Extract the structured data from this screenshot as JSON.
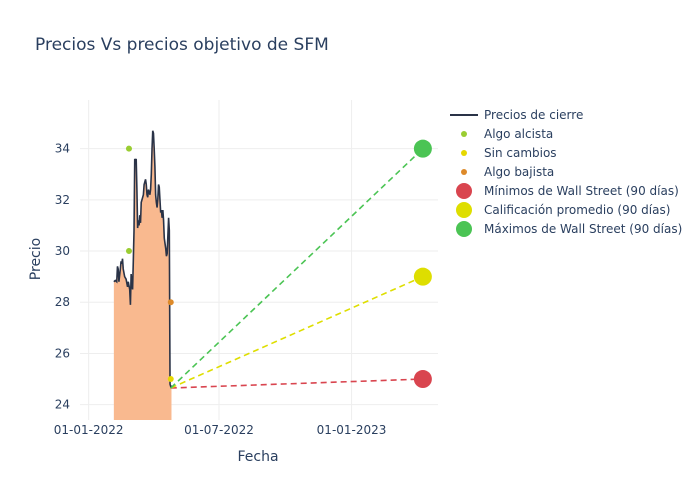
{
  "chart_data": {
    "type": "line",
    "title": "Precios Vs precios objetivo de SFM",
    "xlabel": "Fecha",
    "ylabel": "Precio",
    "x_tick_labels": [
      "01-01-2022",
      "01-07-2022",
      "01-01-2023"
    ],
    "x_tick_dates": [
      "2022-01-01",
      "2022-07-01",
      "2023-01-01"
    ],
    "y_tick_labels": [
      "24",
      "26",
      "28",
      "30",
      "32",
      "34"
    ],
    "y_ticks": [
      24,
      26,
      28,
      30,
      32,
      34
    ],
    "xlim": [
      "2021-12-20",
      "2023-05-01"
    ],
    "ylim": [
      23.4,
      35.9
    ],
    "grid": true,
    "legend_position": "top-right",
    "colors": {
      "close": "#2a3347",
      "fill": "#f9b98f",
      "alcista": "#9acd32",
      "sin_cambios": "#e6d800",
      "bajista": "#dd8a2a",
      "minimos": "#d9454f",
      "promedio": "#dede00",
      "maximos": "#4bc454"
    },
    "series": [
      {
        "name": "Precios de cierre",
        "kind": "line-area",
        "points": [
          [
            "2022-02-05",
            28.8
          ],
          [
            "2022-02-07",
            28.85
          ],
          [
            "2022-02-09",
            28.8
          ],
          [
            "2022-02-10",
            29.4
          ],
          [
            "2022-02-11",
            29.3
          ],
          [
            "2022-02-12",
            28.8
          ],
          [
            "2022-02-14",
            29.3
          ],
          [
            "2022-02-15",
            29.6
          ],
          [
            "2022-02-16",
            29.5
          ],
          [
            "2022-02-17",
            29.7
          ],
          [
            "2022-02-18",
            29.3
          ],
          [
            "2022-02-20",
            29.0
          ],
          [
            "2022-02-22",
            28.9
          ],
          [
            "2022-02-24",
            28.6
          ],
          [
            "2022-02-25",
            28.8
          ],
          [
            "2022-02-27",
            28.5
          ],
          [
            "2022-02-28",
            27.9
          ],
          [
            "2022-03-01",
            29.1
          ],
          [
            "2022-03-02",
            28.7
          ],
          [
            "2022-03-03",
            28.5
          ],
          [
            "2022-03-04",
            29.6
          ],
          [
            "2022-03-05",
            30.8
          ],
          [
            "2022-03-06",
            33.6
          ],
          [
            "2022-03-07",
            33.5
          ],
          [
            "2022-03-08",
            33.6
          ],
          [
            "2022-03-09",
            32.4
          ],
          [
            "2022-03-10",
            30.9
          ],
          [
            "2022-03-11",
            31.2
          ],
          [
            "2022-03-12",
            31.0
          ],
          [
            "2022-03-13",
            31.4
          ],
          [
            "2022-03-14",
            31.1
          ],
          [
            "2022-03-15",
            31.9
          ],
          [
            "2022-03-17",
            32.1
          ],
          [
            "2022-03-18",
            32.2
          ],
          [
            "2022-03-19",
            32.6
          ],
          [
            "2022-03-20",
            32.7
          ],
          [
            "2022-03-21",
            32.8
          ],
          [
            "2022-03-22",
            32.6
          ],
          [
            "2022-03-23",
            32.2
          ],
          [
            "2022-03-24",
            32.1
          ],
          [
            "2022-03-25",
            32.4
          ],
          [
            "2022-03-26",
            32.3
          ],
          [
            "2022-03-27",
            32.2
          ],
          [
            "2022-03-28",
            32.4
          ],
          [
            "2022-03-29",
            33.0
          ],
          [
            "2022-03-30",
            34.0
          ],
          [
            "2022-03-31",
            34.7
          ],
          [
            "2022-04-01",
            34.6
          ],
          [
            "2022-04-02",
            34.0
          ],
          [
            "2022-04-03",
            33.3
          ],
          [
            "2022-04-04",
            32.2
          ],
          [
            "2022-04-05",
            31.9
          ],
          [
            "2022-04-06",
            31.7
          ],
          [
            "2022-04-07",
            32.0
          ],
          [
            "2022-04-08",
            32.6
          ],
          [
            "2022-04-09",
            32.5
          ],
          [
            "2022-04-10",
            32.0
          ],
          [
            "2022-04-11",
            31.5
          ],
          [
            "2022-04-12",
            31.6
          ],
          [
            "2022-04-13",
            31.3
          ],
          [
            "2022-04-14",
            31.6
          ],
          [
            "2022-04-15",
            31.2
          ],
          [
            "2022-04-16",
            30.5
          ],
          [
            "2022-04-17",
            30.3
          ],
          [
            "2022-04-18",
            30.1
          ],
          [
            "2022-04-19",
            29.8
          ],
          [
            "2022-04-20",
            29.9
          ],
          [
            "2022-04-21",
            30.6
          ],
          [
            "2022-04-22",
            31.3
          ],
          [
            "2022-04-23",
            30.8
          ],
          [
            "2022-04-24",
            24.8
          ],
          [
            "2022-04-25",
            24.7
          ],
          [
            "2022-04-26",
            24.75
          ]
        ]
      },
      {
        "name": "Algo alcista",
        "kind": "markers",
        "points": [
          [
            "2022-02-26",
            34
          ],
          [
            "2022-02-26",
            30
          ]
        ]
      },
      {
        "name": "Sin cambios",
        "kind": "markers",
        "points": [
          [
            "2022-04-25",
            25
          ]
        ]
      },
      {
        "name": "Algo bajista",
        "kind": "markers",
        "points": [
          [
            "2022-04-25",
            28
          ]
        ]
      },
      {
        "name": "Mínimos de Wall Street (90 días)",
        "kind": "target",
        "start": [
          "2022-04-25",
          24.65
        ],
        "end": [
          "2023-04-10",
          25
        ]
      },
      {
        "name": "Calificación promedio (90 días)",
        "kind": "target",
        "start": [
          "2022-04-25",
          24.65
        ],
        "end": [
          "2023-04-10",
          29
        ]
      },
      {
        "name": "Máximos de Wall Street (90 días)",
        "kind": "target",
        "start": [
          "2022-04-25",
          24.65
        ],
        "end": [
          "2023-04-10",
          34
        ]
      }
    ]
  }
}
